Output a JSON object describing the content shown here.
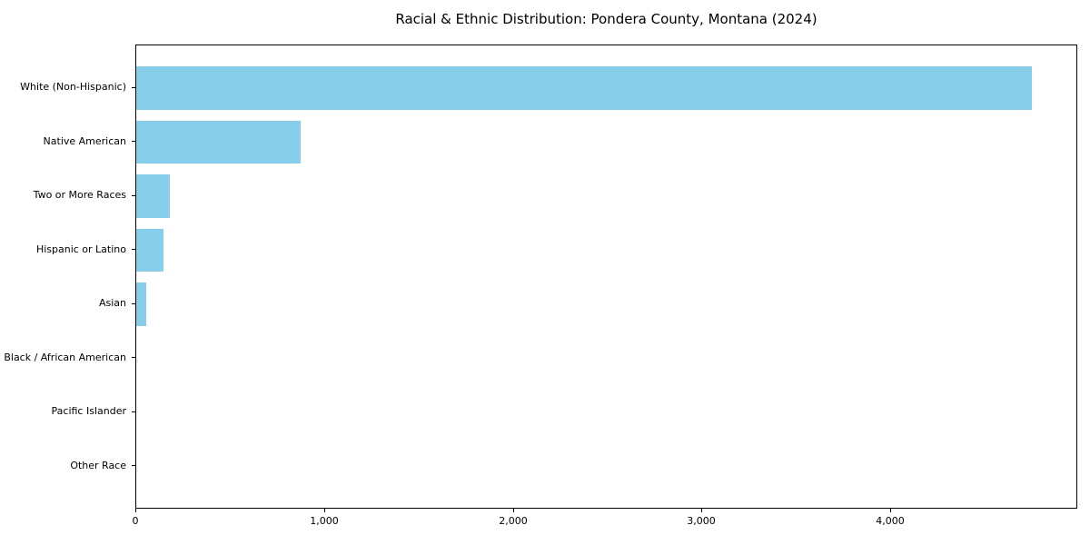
{
  "title": "Racial & Ethnic Distribution: Pondera County, Montana (2024)",
  "colors": {
    "bar": "#87CEEB",
    "spine": "#000000",
    "text": "#000000",
    "background": "#ffffff"
  },
  "chart_data": {
    "type": "bar",
    "orientation": "horizontal",
    "title": "Racial & Ethnic Distribution: Pondera County, Montana (2024)",
    "xlabel": "",
    "ylabel": "",
    "categories": [
      "White (Non-Hispanic)",
      "Native American",
      "Two or More Races",
      "Hispanic or Latino",
      "Asian",
      "Black / African American",
      "Pacific Islander",
      "Other Race"
    ],
    "values": [
      4748,
      874,
      178,
      146,
      55,
      0,
      0,
      0
    ],
    "xlim": [
      0,
      4985
    ],
    "xticks": [
      {
        "value": 0,
        "label": "0"
      },
      {
        "value": 1000,
        "label": "1,000"
      },
      {
        "value": 2000,
        "label": "2,000"
      },
      {
        "value": 3000,
        "label": "3,000"
      },
      {
        "value": 4000,
        "label": "4,000"
      }
    ],
    "bar_color": "#87CEEB",
    "grid": false,
    "legend": false
  }
}
